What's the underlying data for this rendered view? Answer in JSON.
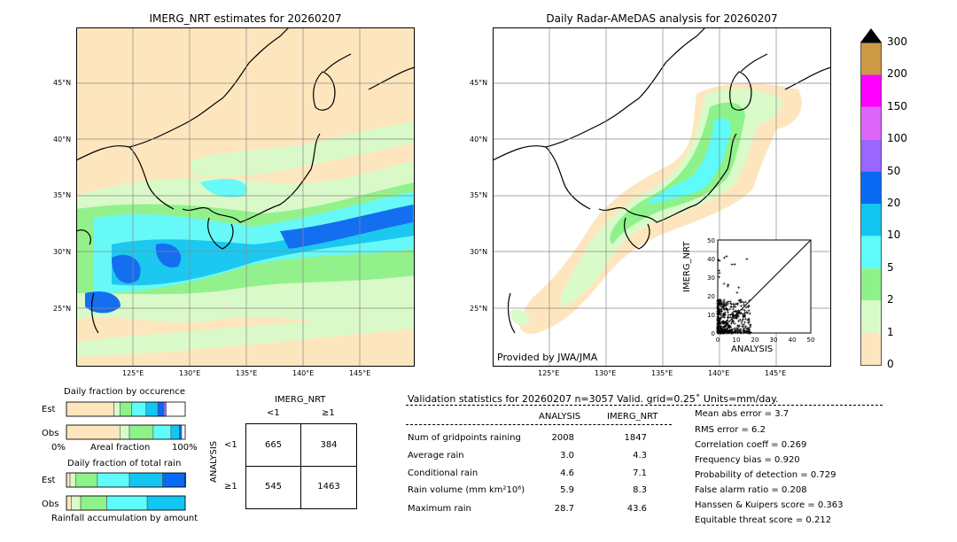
{
  "left_map": {
    "title": "IMERG_NRT estimates for 20260207",
    "lat_labels": [
      "45°N",
      "40°N",
      "35°N",
      "30°N",
      "25°N"
    ],
    "lon_labels": [
      "125°E",
      "130°E",
      "135°E",
      "140°E",
      "145°E"
    ]
  },
  "right_map": {
    "title": "Daily Radar-AMeDAS analysis for 20260207",
    "lat_labels": [
      "45°N",
      "40°N",
      "35°N",
      "30°N",
      "25°N"
    ],
    "lon_labels": [
      "125°E",
      "130°E",
      "135°E",
      "140°E",
      "145°E"
    ],
    "credit": "Provided by JWA/JMA"
  },
  "colorbar": {
    "levels": [
      "0",
      "1",
      "2",
      "5",
      "10",
      "20",
      "50",
      "100",
      "150",
      "200",
      "300"
    ],
    "colors": [
      "#fde6be",
      "#d9fbc9",
      "#8ef28a",
      "#5ffbfb",
      "#11c7f2",
      "#0869f3",
      "#9966ff",
      "#dd66f8",
      "#ff00ff",
      "#cc9944"
    ],
    "extend_color": "#000000"
  },
  "scatter": {
    "xlabel": "ANALYSIS",
    "ylabel": "IMERG_NRT",
    "x_ticks": [
      "0",
      "10",
      "20",
      "30",
      "40",
      "50"
    ],
    "y_ticks": [
      "0",
      "10",
      "20",
      "30",
      "40",
      "50"
    ],
    "xlim": [
      0,
      50
    ],
    "ylim": [
      0,
      50
    ]
  },
  "occurrence": {
    "title": "Daily fraction by occurence",
    "row_labels": [
      "Est",
      "Obs"
    ],
    "axis_left": "0%",
    "axis_mid": "Areal fraction",
    "axis_right": "100%",
    "est_fractions": [
      0.4,
      0.05,
      0.1,
      0.12,
      0.1,
      0.05,
      0.02
    ],
    "obs_fractions": [
      0.45,
      0.08,
      0.2,
      0.15,
      0.07,
      0.02,
      0.0
    ]
  },
  "total_rain": {
    "title": "Daily fraction of total rain",
    "row_labels": [
      "Est",
      "Obs"
    ],
    "footer": "Rainfall accumulation by amount",
    "est_fractions": [
      0.03,
      0.05,
      0.18,
      0.27,
      0.28,
      0.23
    ],
    "obs_fractions": [
      0.04,
      0.08,
      0.22,
      0.34,
      0.32,
      0.0
    ]
  },
  "contingency": {
    "header": "IMERG_NRT",
    "col_labels": [
      "<1",
      "≥1"
    ],
    "row_header": "ANALYSIS",
    "row_labels": [
      "<1",
      "≥1"
    ],
    "cells": [
      [
        "665",
        "384"
      ],
      [
        "545",
        "1463"
      ]
    ]
  },
  "validation": {
    "title": "Validation statistics for 20260207  n=3057 Valid. grid=0.25˚ Units=mm/day.",
    "col_analysis": "ANALYSIS",
    "col_imerg": "IMERG_NRT",
    "rows": [
      {
        "label": "Num of gridpoints raining",
        "analysis": "2008",
        "imerg": "1847"
      },
      {
        "label": "Average rain",
        "analysis": "3.0",
        "imerg": "4.3"
      },
      {
        "label": "Conditional rain",
        "analysis": "4.6",
        "imerg": "7.1"
      },
      {
        "label": "Rain volume (mm km²10⁶)",
        "analysis": "5.9",
        "imerg": "8.3"
      },
      {
        "label": "Maximum rain",
        "analysis": "28.7",
        "imerg": "43.6"
      }
    ],
    "scores": [
      "Mean abs error =    3.7",
      "RMS error =    6.2",
      "Correlation coeff =  0.269",
      "Frequency bias =  0.920",
      "Probability of detection =  0.729",
      "False alarm ratio =  0.208",
      "Hanssen & Kuipers score =  0.363",
      "Equitable threat score =  0.212"
    ]
  }
}
